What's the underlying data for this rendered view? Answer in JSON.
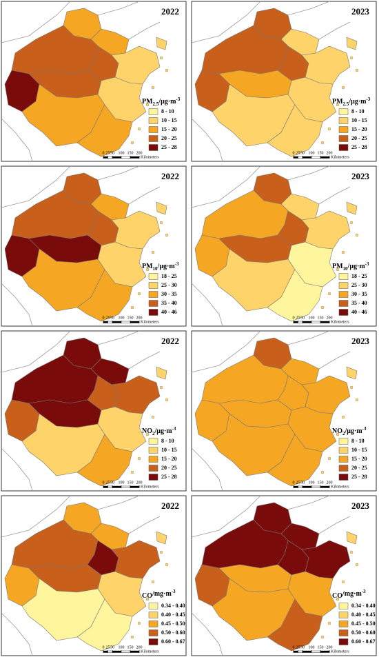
{
  "scale_bar": {
    "ticks": [
      0,
      25,
      50,
      100,
      150,
      200
    ],
    "unit": "Kilometers"
  },
  "panels": [
    {
      "year": "2022",
      "legend": {
        "title": {
          "main": "PM",
          "sub": "2.5",
          "unit": "/μg·m",
          "sup": "-3"
        },
        "classes": [
          {
            "label": "8 - 10",
            "color": "#fff59d"
          },
          {
            "label": "10 - 15",
            "color": "#fdd36a"
          },
          {
            "label": "15 - 20",
            "color": "#f5a623"
          },
          {
            "label": "20 - 25",
            "color": "#c8601c"
          },
          {
            "label": "25 - 28",
            "color": "#7a0b0b"
          }
        ]
      },
      "region_colors": [
        "#f5a623",
        "#f5a623",
        "#c8601c",
        "#c8601c",
        "#fdd36a",
        "#fdd36a",
        "#7a0b0b",
        "#c8601c",
        "#fdd36a",
        "#f5a623",
        "#f5a623"
      ]
    },
    {
      "year": "2023",
      "legend": {
        "title": {
          "main": "PM",
          "sub": "2.5",
          "unit": "/μg·m",
          "sup": "-3"
        },
        "classes": [
          {
            "label": "8 - 10",
            "color": "#fff59d"
          },
          {
            "label": "10 - 15",
            "color": "#fdd36a"
          },
          {
            "label": "15 - 20",
            "color": "#f5a623"
          },
          {
            "label": "20 - 25",
            "color": "#c8601c"
          },
          {
            "label": "25 - 28",
            "color": "#7a0b0b"
          }
        ]
      },
      "region_colors": [
        "#c8601c",
        "#fdd36a",
        "#c8601c",
        "#c8601c",
        "#fdd36a",
        "#fdd36a",
        "#c8601c",
        "#f5a623",
        "#fdd36a",
        "#fdd36a",
        "#fdd36a"
      ]
    },
    {
      "year": "2022",
      "legend": {
        "title": {
          "main": "PM",
          "sub": "10",
          "unit": "/μg·m",
          "sup": "-3"
        },
        "classes": [
          {
            "label": "18 - 25",
            "color": "#fff59d"
          },
          {
            "label": "25 - 30",
            "color": "#fdd36a"
          },
          {
            "label": "30 - 35",
            "color": "#f5a623"
          },
          {
            "label": "35 - 40",
            "color": "#c8601c"
          },
          {
            "label": "40 - 46",
            "color": "#7a0b0b"
          }
        ]
      },
      "region_colors": [
        "#c8601c",
        "#f5a623",
        "#c8601c",
        "#c8601c",
        "#fdd36a",
        "#fdd36a",
        "#7a0b0b",
        "#7a0b0b",
        "#fdd36a",
        "#f5a623",
        "#f5a623"
      ]
    },
    {
      "year": "2023",
      "legend": {
        "title": {
          "main": "PM",
          "sub": "10",
          "unit": "/μg·m",
          "sup": "-3"
        },
        "classes": [
          {
            "label": "18 - 25",
            "color": "#fff59d"
          },
          {
            "label": "25 - 30",
            "color": "#fdd36a"
          },
          {
            "label": "30 - 35",
            "color": "#f5a623"
          },
          {
            "label": "35 - 40",
            "color": "#c8601c"
          },
          {
            "label": "40 - 46",
            "color": "#7a0b0b"
          }
        ]
      },
      "region_colors": [
        "#c8601c",
        "#fdd36a",
        "#f5a623",
        "#c8601c",
        "#fdd36a",
        "#fdd36a",
        "#f5a623",
        "#c8601c",
        "#fff59d",
        "#fdd36a",
        "#fff59d"
      ]
    },
    {
      "year": "2022",
      "legend": {
        "title": {
          "main": "NO",
          "sub": "2",
          "unit": "/μg·m",
          "sup": "-3"
        },
        "classes": [
          {
            "label": "8 - 10",
            "color": "#fff59d"
          },
          {
            "label": "10 - 15",
            "color": "#fdd36a"
          },
          {
            "label": "15 - 20",
            "color": "#f5a623"
          },
          {
            "label": "20 - 25",
            "color": "#c8601c"
          },
          {
            "label": "25 - 28",
            "color": "#7a0b0b"
          }
        ]
      },
      "region_colors": [
        "#7a0b0b",
        "#7a0b0b",
        "#7a0b0b",
        "#c8601c",
        "#c8601c",
        "#fdd36a",
        "#c8601c",
        "#7a0b0b",
        "#fdd36a",
        "#fdd36a",
        "#f5a623"
      ]
    },
    {
      "year": "2023",
      "legend": {
        "title": {
          "main": "NO",
          "sub": "2",
          "unit": "/μg·m",
          "sup": "-3"
        },
        "classes": [
          {
            "label": "8 - 10",
            "color": "#fff59d"
          },
          {
            "label": "10 - 15",
            "color": "#fdd36a"
          },
          {
            "label": "15 - 20",
            "color": "#f5a623"
          },
          {
            "label": "20 - 25",
            "color": "#c8601c"
          },
          {
            "label": "25 - 28",
            "color": "#7a0b0b"
          }
        ]
      },
      "region_colors": [
        "#c8601c",
        "#f5a623",
        "#f5a623",
        "#f5a623",
        "#f5a623",
        "#fdd36a",
        "#f5a623",
        "#f5a623",
        "#f5a623",
        "#f5a623",
        "#f5a623"
      ]
    },
    {
      "year": "2022",
      "legend": {
        "title": {
          "main": "CO",
          "sub": "",
          "unit": "/mg·m",
          "sup": "-3"
        },
        "classes": [
          {
            "label": "0.34 - 0.40",
            "color": "#fff59d"
          },
          {
            "label": "0.40 - 0.45",
            "color": "#fdd36a"
          },
          {
            "label": "0.45 - 0.50",
            "color": "#f5a623"
          },
          {
            "label": "0.50 - 0.60",
            "color": "#c8601c"
          },
          {
            "label": "0.60 - 0.67",
            "color": "#7a0b0b"
          }
        ]
      },
      "region_colors": [
        "#f5a623",
        "#f5a623",
        "#c8601c",
        "#7a0b0b",
        "#c8601c",
        "#fdd36a",
        "#f5a623",
        "#c8601c",
        "#fdd36a",
        "#fff59d",
        "#fff59d"
      ]
    },
    {
      "year": "2023",
      "legend": {
        "title": {
          "main": "CO",
          "sub": "",
          "unit": "/mg·m",
          "sup": "-3"
        },
        "classes": [
          {
            "label": "0.34 - 0.40",
            "color": "#fff59d"
          },
          {
            "label": "0.40 - 0.45",
            "color": "#fdd36a"
          },
          {
            "label": "0.45 - 0.50",
            "color": "#f5a623"
          },
          {
            "label": "0.50 - 0.60",
            "color": "#c8601c"
          },
          {
            "label": "0.60 - 0.67",
            "color": "#7a0b0b"
          }
        ]
      },
      "region_colors": [
        "#7a0b0b",
        "#7a0b0b",
        "#7a0b0b",
        "#7a0b0b",
        "#7a0b0b",
        "#fdd36a",
        "#c8601c",
        "#f5a623",
        "#f5a623",
        "#f5a623",
        "#c8601c"
      ]
    }
  ]
}
